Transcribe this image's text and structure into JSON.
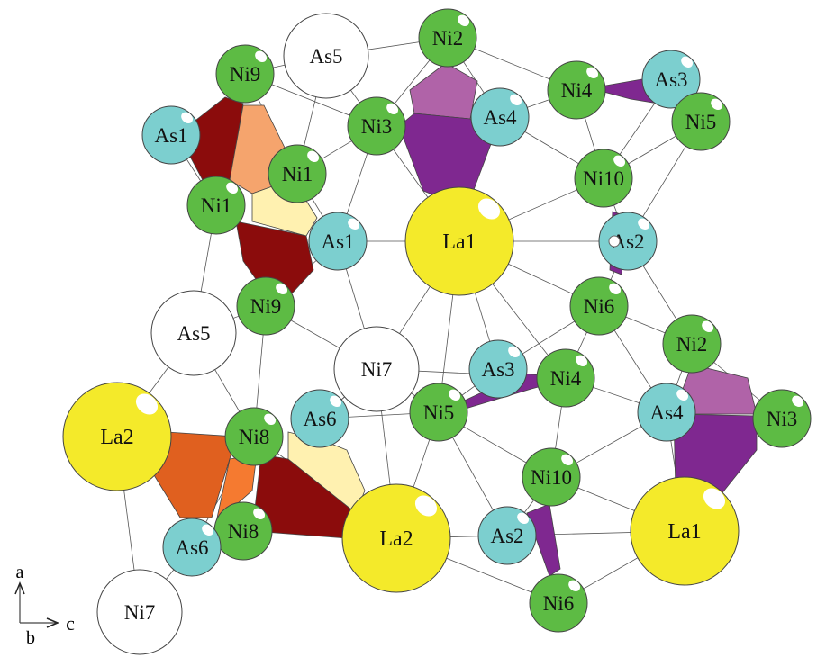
{
  "colors": {
    "Ni": "#5dbb44",
    "As": "#7ccfcf",
    "La": "#f4ea2a",
    "white_site": "#ffffff",
    "dark_red_polyhedron": "#8b0c0c",
    "orange_polyhedron": "#f5a46d",
    "light_yellow_polyhedron": "#fff1b0",
    "dark_orange_polyhedron": "#e0601f",
    "bright_orange_polyhedron": "#f57a30",
    "purple_polyhedron": "#7f2890",
    "light_purple_polyhedron": "#b063a8"
  },
  "atoms": [
    {
      "label": "As5",
      "type": "white_site"
    },
    {
      "label": "Ni9",
      "type": "Ni"
    },
    {
      "label": "Ni2",
      "type": "Ni"
    },
    {
      "label": "Ni4",
      "type": "Ni"
    },
    {
      "label": "As3",
      "type": "As"
    },
    {
      "label": "Ni5",
      "type": "Ni"
    },
    {
      "label": "As1",
      "type": "As"
    },
    {
      "label": "Ni3",
      "type": "Ni"
    },
    {
      "label": "As4",
      "type": "As"
    },
    {
      "label": "Ni1",
      "type": "Ni"
    },
    {
      "label": "Ni10",
      "type": "Ni"
    },
    {
      "label": "Ni1",
      "type": "Ni"
    },
    {
      "label": "La1",
      "type": "La"
    },
    {
      "label": "As1",
      "type": "As"
    },
    {
      "label": "As2",
      "type": "As"
    },
    {
      "label": "Ni9",
      "type": "Ni"
    },
    {
      "label": "Ni6",
      "type": "Ni"
    },
    {
      "label": "As5",
      "type": "white_site"
    },
    {
      "label": "Ni7",
      "type": "white_site"
    },
    {
      "label": "Ni2",
      "type": "Ni"
    },
    {
      "label": "As3",
      "type": "As"
    },
    {
      "label": "Ni4",
      "type": "Ni"
    },
    {
      "label": "La2",
      "type": "La"
    },
    {
      "label": "As6",
      "type": "As"
    },
    {
      "label": "Ni8",
      "type": "Ni"
    },
    {
      "label": "Ni5",
      "type": "Ni"
    },
    {
      "label": "As4",
      "type": "As"
    },
    {
      "label": "Ni3",
      "type": "Ni"
    },
    {
      "label": "Ni10",
      "type": "Ni"
    },
    {
      "label": "La2",
      "type": "La"
    },
    {
      "label": "La1",
      "type": "La"
    },
    {
      "label": "As2",
      "type": "As"
    },
    {
      "label": "Ni8",
      "type": "Ni"
    },
    {
      "label": "As6",
      "type": "As"
    },
    {
      "label": "Ni6",
      "type": "Ni"
    },
    {
      "label": "Ni7",
      "type": "white_site"
    }
  ],
  "axes": {
    "a": "a",
    "b": "b",
    "c": "c"
  }
}
